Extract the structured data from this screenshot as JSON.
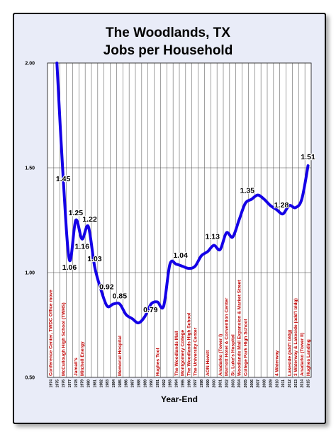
{
  "chart_data": {
    "type": "line",
    "title_lines": [
      "The Woodlands, TX",
      "Jobs per Household"
    ],
    "xlabel": "Year-End",
    "ylabel": "",
    "ylim": [
      0.5,
      2.0
    ],
    "yticks": [
      "0.50",
      "1.00",
      "1.50",
      "2.00"
    ],
    "grid": true,
    "line_color": "#1400e6",
    "event_color": "#c00000",
    "categories": [
      "1974",
      "1975",
      "1976",
      "1977",
      "1978",
      "1979",
      "1980",
      "1981",
      "1982",
      "1983",
      "1984",
      "1985",
      "1986",
      "1987",
      "1988",
      "1989",
      "1990",
      "1991",
      "1992",
      "1993",
      "1994",
      "1995",
      "1996",
      "1997",
      "1998",
      "1999",
      "2000",
      "2001",
      "2002",
      "2003",
      "2004",
      "2005",
      "2006",
      "2007",
      "2008",
      "2009",
      "2010",
      "2011",
      "2012",
      "2013",
      "2014",
      "2015"
    ],
    "series": [
      {
        "values": [
          null,
          2.0,
          1.45,
          1.06,
          1.25,
          1.16,
          1.22,
          1.03,
          0.92,
          0.84,
          0.85,
          0.85,
          0.8,
          0.78,
          0.76,
          0.79,
          0.85,
          0.86,
          0.84,
          1.04,
          1.04,
          1.03,
          1.02,
          1.03,
          1.08,
          1.1,
          1.13,
          1.11,
          1.19,
          1.17,
          1.25,
          1.33,
          1.35,
          1.37,
          1.35,
          1.32,
          1.3,
          1.28,
          1.32,
          1.31,
          1.35,
          1.51
        ]
      }
    ],
    "data_labels": [
      {
        "year": "1976",
        "text": "1.45"
      },
      {
        "year": "1977",
        "text": "1.06"
      },
      {
        "year": "1978",
        "text": "1.25"
      },
      {
        "year": "1979",
        "text": "1.16"
      },
      {
        "year": "1980",
        "text": "1.22"
      },
      {
        "year": "1981",
        "text": "1.03"
      },
      {
        "year": "1982",
        "text": "0.92"
      },
      {
        "year": "1985",
        "text": "0.85"
      },
      {
        "year": "1989",
        "text": "0.79"
      },
      {
        "year": "1994",
        "text": "1.04"
      },
      {
        "year": "2000",
        "text": "1.13"
      },
      {
        "year": "2006",
        "text": "1.35"
      },
      {
        "year": "2011",
        "text": "1.28"
      },
      {
        "year": "2015",
        "text": "1.51"
      }
    ],
    "events": [
      {
        "year": "1974",
        "text": "Conference Center, TWDC Office move"
      },
      {
        "year": "1976",
        "text": "McCullough High School (TWHS)"
      },
      {
        "year": "1978",
        "text": "Jamail's"
      },
      {
        "year": "1979",
        "text": "Mitchell Energy"
      },
      {
        "year": "1985",
        "text": "Memorial Hospital"
      },
      {
        "year": "1991",
        "text": "Hughes Tool"
      },
      {
        "year": "1994",
        "text": "The Woodlands Mall"
      },
      {
        "year": "1995",
        "text": "Montgomery College"
      },
      {
        "year": "1996",
        "text": "The Woodlands High School"
      },
      {
        "year": "1997",
        "text": "The University Center"
      },
      {
        "year": "1999",
        "text": "AON Hewitt"
      },
      {
        "year": "2001",
        "text": "Anadarko (Tower I)"
      },
      {
        "year": "2002",
        "text": "Marriott Hotel & Convention Center"
      },
      {
        "year": "2003",
        "text": "St. Luke's Hospital"
      },
      {
        "year": "2004",
        "text": "Woodlands Mall Expansion & Market Street"
      },
      {
        "year": "2005",
        "text": "College Park High School"
      },
      {
        "year": "2010",
        "text": "4 Waterway"
      },
      {
        "year": "2012",
        "text": "Lakeside (add'l bldg)"
      },
      {
        "year": "2013",
        "text": "3 Waterway & Lakeside (add'l bldg)"
      },
      {
        "year": "2014",
        "text": "Anadarko (Tower II)"
      },
      {
        "year": "2015",
        "text": "Hughes Landing"
      }
    ]
  }
}
